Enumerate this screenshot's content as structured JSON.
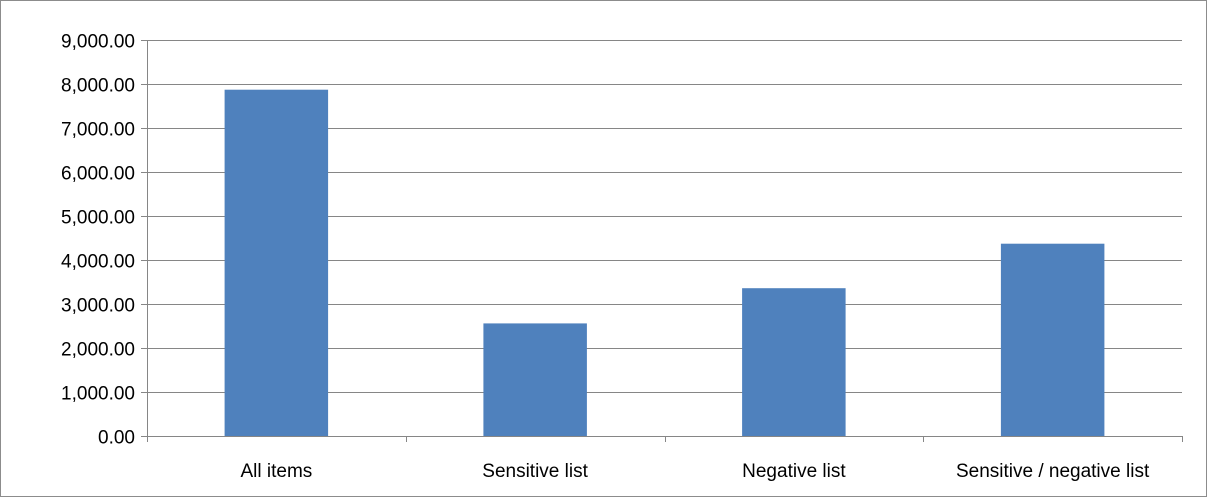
{
  "chart_data": {
    "type": "bar",
    "categories": [
      "All items",
      "Sensitive list",
      "Negative list",
      "Sensitive / negative list"
    ],
    "values": [
      7870,
      2560,
      3360,
      4370
    ],
    "ylim": [
      0,
      9000
    ],
    "yticks": [
      0,
      1000,
      2000,
      3000,
      4000,
      5000,
      6000,
      7000,
      8000,
      9000
    ],
    "ytick_labels": [
      "0.00",
      "1,000.00",
      "2,000.00",
      "3,000.00",
      "4,000.00",
      "5,000.00",
      "6,000.00",
      "7,000.00",
      "8,000.00",
      "9,000.00"
    ],
    "grid": true,
    "legend": "none",
    "colors": {
      "bar": "#4f81bd",
      "grid": "#868686",
      "axis": "#868686",
      "text": "#000000"
    }
  }
}
